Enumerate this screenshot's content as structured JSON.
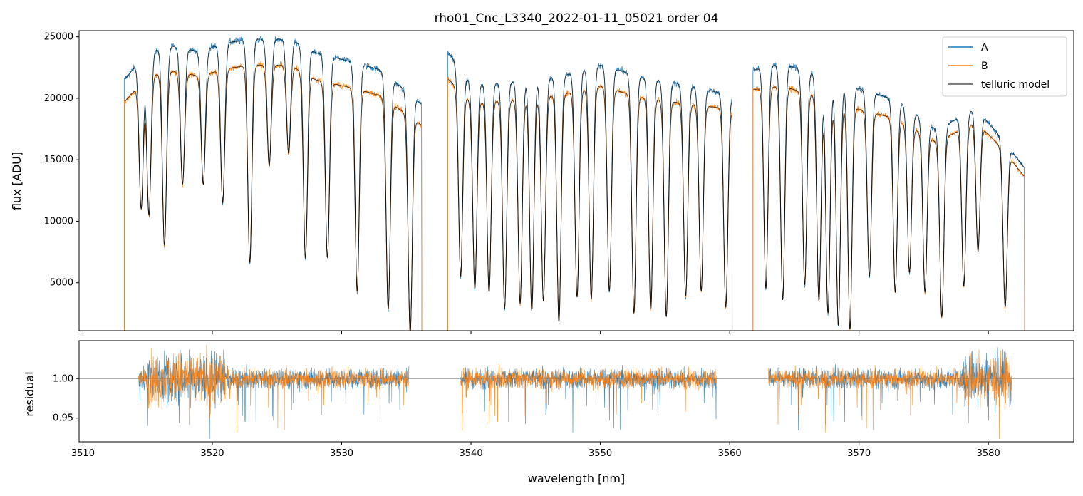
{
  "chart_data": [
    {
      "panel": "top",
      "type": "line",
      "title": "rho01_Cnc_L3340_2022-01-11_05021  order 04",
      "xlabel": "",
      "ylabel": "flux [ADU]",
      "xlim": [
        3509.7,
        3586.6
      ],
      "ylim": [
        1100,
        25500
      ],
      "yticks": [
        5000,
        10000,
        15000,
        20000,
        25000
      ],
      "ytick_labels": [
        "5000",
        "10000",
        "15000",
        "20000",
        "25000"
      ],
      "legend_position": "top-right",
      "series": [
        {
          "name": "A",
          "color": "#1f77b4",
          "continuum_segments": [
            {
              "x0": 3513.2,
              "x1": 3536.2,
              "knots": [
                [
                  3513.2,
                  21500
                ],
                [
                  3515,
                  23800
                ],
                [
                  3517,
                  24200
                ],
                [
                  3519,
                  23800
                ],
                [
                  3521,
                  24500
                ],
                [
                  3523,
                  24800
                ],
                [
                  3526,
                  24800
                ],
                [
                  3528,
                  23700
                ],
                [
                  3531,
                  22900
                ],
                [
                  3533,
                  22300
                ],
                [
                  3536.2,
                  19500
                ]
              ]
            },
            {
              "x0": 3538.2,
              "x1": 3560.2,
              "knots": [
                [
                  3538.2,
                  23800
                ],
                [
                  3540,
                  21200
                ],
                [
                  3543,
                  21300
                ],
                [
                  3547,
                  21800
                ],
                [
                  3550,
                  22700
                ],
                [
                  3553,
                  21800
                ],
                [
                  3557,
                  21000
                ],
                [
                  3560.2,
                  20200
                ]
              ]
            },
            {
              "x0": 3561.8,
              "x1": 3582.8,
              "knots": [
                [
                  3561.8,
                  22300
                ],
                [
                  3564,
                  22800
                ],
                [
                  3567,
                  21900
                ],
                [
                  3570,
                  20800
                ],
                [
                  3573,
                  19800
                ],
                [
                  3576,
                  17400
                ],
                [
                  3579,
                  19200
                ],
                [
                  3581,
                  16800
                ],
                [
                  3582.8,
                  14300
                ]
              ]
            }
          ]
        },
        {
          "name": "B",
          "color": "#ff7f0e",
          "continuum_segments": [
            {
              "x0": 3513.2,
              "x1": 3536.2,
              "knots": [
                [
                  3513.2,
                  19700
                ],
                [
                  3515,
                  21800
                ],
                [
                  3517,
                  22200
                ],
                [
                  3519,
                  21800
                ],
                [
                  3521,
                  22400
                ],
                [
                  3523,
                  22700
                ],
                [
                  3526,
                  22700
                ],
                [
                  3528,
                  21500
                ],
                [
                  3531,
                  20800
                ],
                [
                  3533,
                  20200
                ],
                [
                  3536.2,
                  17800
                ]
              ]
            },
            {
              "x0": 3538.2,
              "x1": 3560.2,
              "knots": [
                [
                  3538.2,
                  21600
                ],
                [
                  3540,
                  19700
                ],
                [
                  3543,
                  19800
                ],
                [
                  3547,
                  20300
                ],
                [
                  3550,
                  21000
                ],
                [
                  3553,
                  20100
                ],
                [
                  3557,
                  19500
                ],
                [
                  3560.2,
                  19100
                ]
              ]
            },
            {
              "x0": 3561.8,
              "x1": 3582.8,
              "knots": [
                [
                  3561.8,
                  20700
                ],
                [
                  3564,
                  21000
                ],
                [
                  3567,
                  20100
                ],
                [
                  3570,
                  19100
                ],
                [
                  3573,
                  18300
                ],
                [
                  3576,
                  16400
                ],
                [
                  3579,
                  18100
                ],
                [
                  3581,
                  16000
                ],
                [
                  3582.8,
                  13600
                ]
              ]
            }
          ]
        },
        {
          "name": "telluric model",
          "color": "#000000",
          "overlays": [
            "A",
            "B"
          ]
        }
      ],
      "absorption_lines": [
        [
          3514.5,
          11000
        ],
        [
          3515.1,
          10500
        ],
        [
          3516.3,
          8000
        ],
        [
          3517.7,
          13000
        ],
        [
          3519.3,
          13000
        ],
        [
          3520.8,
          11500
        ],
        [
          3522.9,
          6600
        ],
        [
          3524.4,
          14500
        ],
        [
          3525.9,
          15500
        ],
        [
          3527.2,
          7000
        ],
        [
          3528.9,
          7000
        ],
        [
          3531.2,
          4300
        ],
        [
          3533.6,
          2800
        ],
        [
          3535.3,
          900
        ],
        [
          3539.2,
          5500
        ],
        [
          3540.3,
          4500
        ],
        [
          3541.4,
          4200
        ],
        [
          3542.6,
          2900
        ],
        [
          3543.8,
          3300
        ],
        [
          3544.7,
          2700
        ],
        [
          3545.6,
          3500
        ],
        [
          3546.8,
          1800
        ],
        [
          3548.2,
          3800
        ],
        [
          3549.3,
          3600
        ],
        [
          3550.7,
          4300
        ],
        [
          3552.6,
          2500
        ],
        [
          3553.9,
          2800
        ],
        [
          3555.1,
          2200
        ],
        [
          3556.6,
          3900
        ],
        [
          3557.8,
          4300
        ],
        [
          3559.7,
          3000
        ],
        [
          3562.8,
          4500
        ],
        [
          3564.1,
          3600
        ],
        [
          3565.8,
          4800
        ],
        [
          3566.9,
          3500
        ],
        [
          3567.6,
          2500
        ],
        [
          3568.4,
          1500
        ],
        [
          3569.3,
          1200
        ],
        [
          3570.8,
          5500
        ],
        [
          3572.8,
          4200
        ],
        [
          3573.9,
          5800
        ],
        [
          3575.1,
          4200
        ],
        [
          3576.4,
          2200
        ],
        [
          3578.1,
          4700
        ],
        [
          3579.2,
          7600
        ],
        [
          3581.3,
          3000
        ]
      ],
      "coverage_gaps": [
        [
          3536.2,
          3538.2
        ],
        [
          3560.2,
          3561.8
        ]
      ]
    },
    {
      "panel": "bottom",
      "type": "line",
      "title": "",
      "xlabel": "wavelength [nm]",
      "ylabel": "residual",
      "xlim": [
        3509.7,
        3586.6
      ],
      "ylim": [
        0.92,
        1.048
      ],
      "xticks": [
        3510,
        3520,
        3530,
        3540,
        3550,
        3560,
        3570,
        3580
      ],
      "xtick_labels": [
        "3510",
        "3520",
        "3530",
        "3540",
        "3550",
        "3560",
        "3570",
        "3580"
      ],
      "yticks": [
        0.95,
        1.0
      ],
      "ytick_labels": [
        "0.95",
        "1.00"
      ],
      "reference_line": 1.0,
      "series": [
        {
          "name": "A",
          "color": "#1f77b4",
          "segments": [
            [
              3514.3,
              3535.2
            ],
            [
              3539.2,
              3559.0
            ],
            [
              3563.0,
              3581.8
            ]
          ]
        },
        {
          "name": "B",
          "color": "#ff7f0e",
          "segments": [
            [
              3514.3,
              3535.2
            ],
            [
              3539.2,
              3559.0
            ],
            [
              3563.0,
              3581.8
            ]
          ]
        }
      ],
      "noise_envelope": {
        "typical_scatter": 0.012,
        "high_scatter_ranges": [
          [
            3515.0,
            3521.0
          ],
          [
            3578.0,
            3581.8
          ]
        ]
      }
    }
  ]
}
